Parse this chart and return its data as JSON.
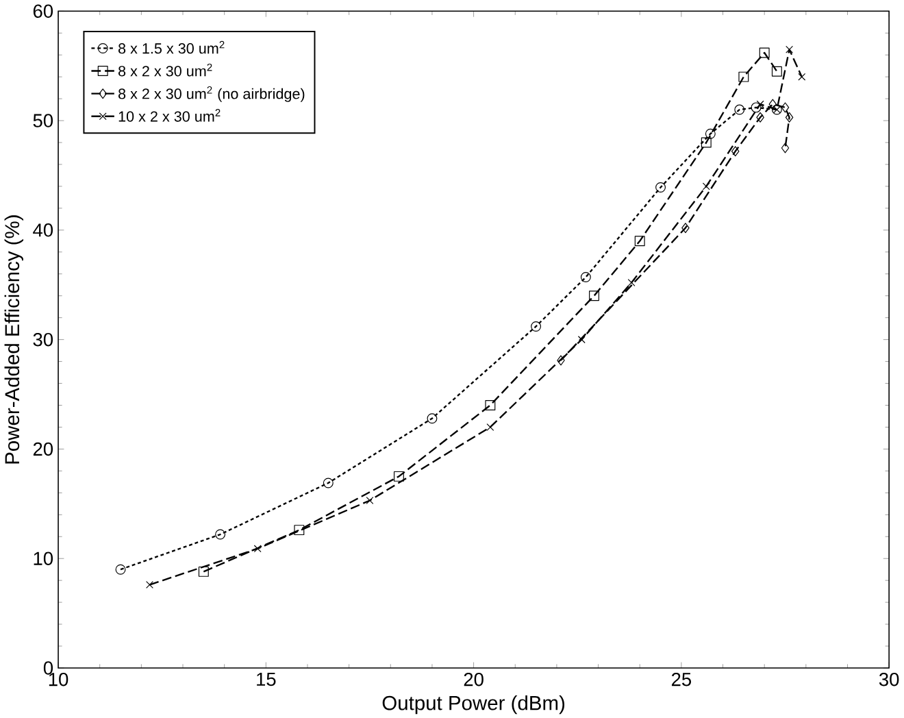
{
  "chart_data": {
    "type": "line",
    "xlabel": "Output Power (dBm)",
    "ylabel": "Power-Added Efficiency (%)",
    "xlim": [
      10,
      30
    ],
    "ylim": [
      0,
      60
    ],
    "xticks": [
      10,
      15,
      20,
      25,
      30
    ],
    "yticks": [
      0,
      10,
      20,
      30,
      40,
      50,
      60
    ],
    "grid": false,
    "legend": "top left",
    "series": [
      {
        "name": "8 x 1.5 x 30 um$^{2}$",
        "color": "#000000",
        "marker": "circle",
        "line_style": "dotted",
        "x": [
          11.5,
          13.9,
          16.5,
          19.0,
          21.5,
          22.7,
          24.5,
          25.7,
          26.4,
          26.8,
          27.3
        ],
        "values": [
          9.0,
          12.2,
          16.9,
          22.8,
          31.2,
          35.7,
          43.9,
          48.8,
          51.0,
          51.2,
          51.0
        ]
      },
      {
        "name": "8 x 2 x 30 um$^{2}$",
        "color": "#000000",
        "marker": "square",
        "line_style": "dashed",
        "x": [
          13.5,
          15.8,
          18.2,
          20.4,
          22.9,
          24.0,
          25.6,
          26.5,
          27.0,
          27.3
        ],
        "values": [
          8.8,
          12.6,
          17.5,
          24.0,
          34.0,
          39.0,
          48.0,
          54.0,
          56.2,
          54.5
        ]
      },
      {
        "name": "8 x 2 x 30 um$^{2}$ (no airbridge)",
        "color": "#000000",
        "marker": "diamond",
        "line_style": "dashed",
        "x": [
          22.1,
          25.1,
          26.3,
          26.9,
          27.2,
          27.5,
          27.6,
          27.5
        ],
        "values": [
          28.1,
          40.2,
          47.2,
          50.3,
          51.5,
          51.2,
          50.3,
          47.5
        ]
      },
      {
        "name": "10 x 2 x 30 um$^{2}$",
        "color": "#000000",
        "marker": "cross",
        "line_style": "dashed",
        "x": [
          12.2,
          14.8,
          17.5,
          20.4,
          22.6,
          23.8,
          25.6,
          26.9,
          27.3,
          27.6,
          27.9
        ],
        "values": [
          7.6,
          10.9,
          15.3,
          22.0,
          30.0,
          35.2,
          44.0,
          51.5,
          51.0,
          56.5,
          54.0
        ]
      }
    ]
  }
}
